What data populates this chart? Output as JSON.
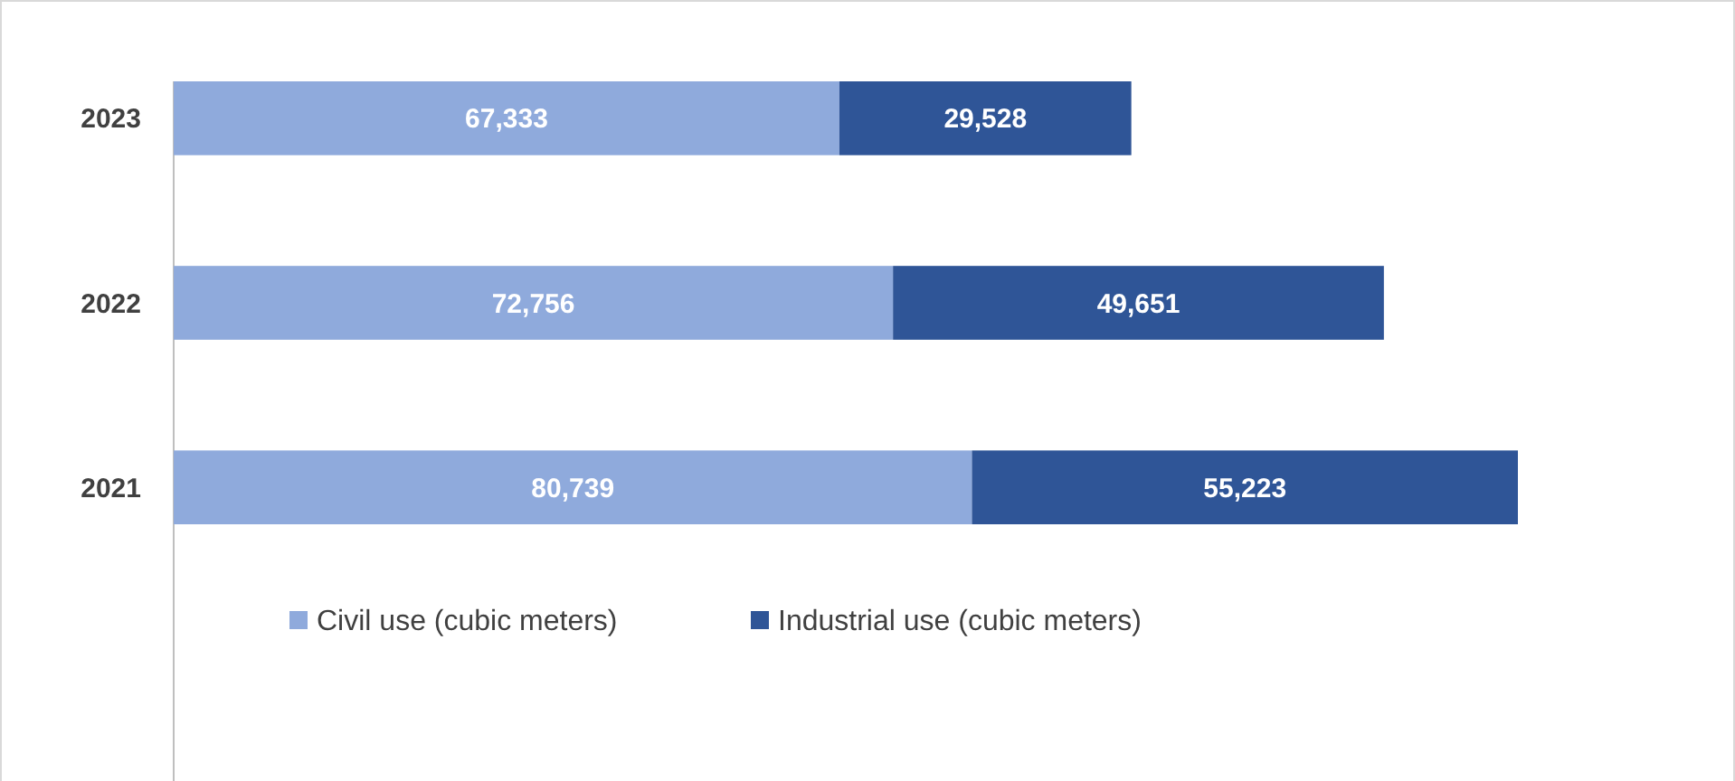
{
  "chart_data": {
    "type": "bar",
    "orientation": "horizontal",
    "stacked": true,
    "categories": [
      "2023",
      "2022",
      "2021"
    ],
    "series": [
      {
        "name": "Civil use (cubic meters)",
        "color": "#8faadc",
        "values": [
          67333,
          72756,
          80739
        ],
        "value_labels": [
          "67,333",
          "72,756",
          "80,739"
        ]
      },
      {
        "name": "Industrial use (cubic meters)",
        "color": "#2f5597",
        "values": [
          29528,
          49651,
          55223
        ],
        "value_labels": [
          "29,528",
          "49,651",
          "55,223"
        ]
      }
    ],
    "legend": "bottom",
    "grid": false
  }
}
